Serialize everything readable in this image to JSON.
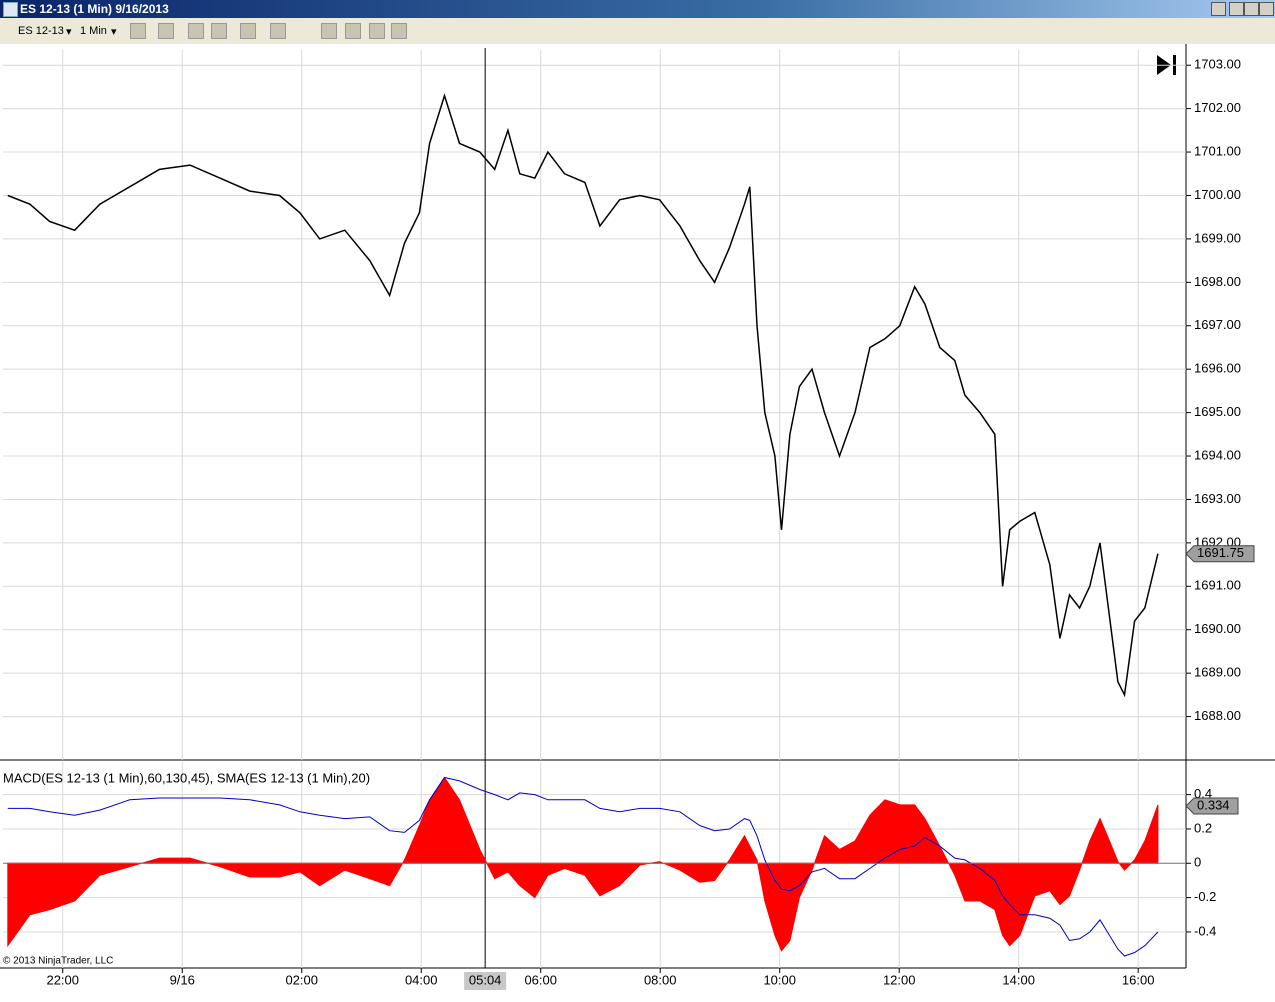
{
  "window": {
    "title": "ES 12-13 (1 Min)  9/16/2013"
  },
  "toolbar": {
    "instrument": "ES 12-13",
    "interval": "1 Min"
  },
  "copyright": "© 2013 NinjaTrader, LLC",
  "chart_data": [
    {
      "type": "line",
      "color": "#000000",
      "grid": true,
      "xlim": [
        21,
        40.8
      ],
      "ylim": [
        1687,
        1703.35
      ],
      "yticks": [
        {
          "value": 1688,
          "label": "1688.00"
        },
        {
          "value": 1689,
          "label": "1689.00"
        },
        {
          "value": 1690,
          "label": "1690.00"
        },
        {
          "value": 1691,
          "label": "1691.00"
        },
        {
          "value": 1692,
          "label": "1692.00"
        },
        {
          "value": 1693,
          "label": "1693.00"
        },
        {
          "value": 1694,
          "label": "1694.00"
        },
        {
          "value": 1695,
          "label": "1695.00"
        },
        {
          "value": 1696,
          "label": "1696.00"
        },
        {
          "value": 1697,
          "label": "1697.00"
        },
        {
          "value": 1698,
          "label": "1698.00"
        },
        {
          "value": 1699,
          "label": "1699.00"
        },
        {
          "value": 1700,
          "label": "1700.00"
        },
        {
          "value": 1701,
          "label": "1701.00"
        },
        {
          "value": 1702,
          "label": "1702.00"
        },
        {
          "value": 1703,
          "label": "1703.00"
        }
      ],
      "x": [
        21.08,
        21.45,
        21.78,
        22.2,
        22.62,
        23.12,
        23.62,
        24.13,
        24.63,
        25.13,
        25.63,
        25.97,
        26.3,
        26.72,
        27.14,
        27.47,
        27.72,
        27.97,
        28.14,
        28.39,
        28.64,
        28.98,
        29.23,
        29.45,
        29.65,
        29.9,
        30.12,
        30.4,
        30.74,
        30.99,
        31.32,
        31.66,
        31.99,
        32.33,
        32.66,
        32.91,
        33.16,
        33.41,
        33.5,
        33.62,
        33.75,
        33.92,
        34.03,
        34.17,
        34.33,
        34.54,
        34.75,
        35.0,
        35.26,
        35.51,
        35.76,
        36.01,
        36.26,
        36.43,
        36.68,
        36.93,
        37.1,
        37.35,
        37.6,
        37.73,
        37.85,
        38.02,
        38.27,
        38.52,
        38.69,
        38.85,
        39.02,
        39.19,
        39.36,
        39.52,
        39.66,
        39.77,
        39.94,
        40.11,
        40.33
      ],
      "values": [
        1700.0,
        1699.8,
        1699.4,
        1699.2,
        1699.8,
        1700.2,
        1700.6,
        1700.7,
        1700.4,
        1700.1,
        1700.0,
        1699.6,
        1699.0,
        1699.2,
        1698.5,
        1697.7,
        1698.9,
        1699.6,
        1701.2,
        1702.3,
        1701.2,
        1701.0,
        1700.6,
        1701.5,
        1700.5,
        1700.4,
        1701.0,
        1700.5,
        1700.3,
        1699.3,
        1699.9,
        1700.0,
        1699.9,
        1699.3,
        1698.5,
        1698.0,
        1698.8,
        1699.8,
        1700.2,
        1697.0,
        1695.0,
        1694.0,
        1692.3,
        1694.5,
        1695.6,
        1696.0,
        1695.0,
        1694.0,
        1695.0,
        1696.5,
        1696.7,
        1697.0,
        1697.9,
        1697.5,
        1696.5,
        1696.2,
        1695.4,
        1695.0,
        1694.5,
        1691.0,
        1692.3,
        1692.5,
        1692.7,
        1691.5,
        1689.8,
        1690.8,
        1690.5,
        1691.0,
        1692.0,
        1690.3,
        1688.8,
        1688.5,
        1690.2,
        1690.5,
        1691.75
      ],
      "last_value": {
        "value": 1691.75,
        "label": "1691.75"
      },
      "crosshair": {
        "value": 29.07,
        "label": "05:04"
      }
    },
    {
      "type": "macd",
      "title": "MACD(ES 12-13 (1 Min),60,130,45), SMA(ES 12-13 (1 Min),20)",
      "grid": true,
      "xlim": [
        21,
        40.8
      ],
      "ylim": [
        -0.61,
        0.59
      ],
      "yticks": [
        -0.4,
        -0.2,
        0,
        0.2,
        0.4
      ],
      "xticks": [
        {
          "value": 22,
          "label": "22:00"
        },
        {
          "value": 24,
          "label": "9/16"
        },
        {
          "value": 26,
          "label": "02:00"
        },
        {
          "value": 28,
          "label": "04:00"
        },
        {
          "value": 30,
          "label": "06:00"
        },
        {
          "value": 32,
          "label": "08:00"
        },
        {
          "value": 34,
          "label": "10:00"
        },
        {
          "value": 36,
          "label": "12:00"
        },
        {
          "value": 38,
          "label": "14:00"
        },
        {
          "value": 40,
          "label": "16:00"
        }
      ],
      "x": [
        21.08,
        21.45,
        21.78,
        22.2,
        22.62,
        23.12,
        23.62,
        24.13,
        24.63,
        25.13,
        25.63,
        25.97,
        26.3,
        26.72,
        27.14,
        27.47,
        27.72,
        27.97,
        28.14,
        28.39,
        28.64,
        28.98,
        29.23,
        29.45,
        29.65,
        29.9,
        30.12,
        30.4,
        30.74,
        30.99,
        31.32,
        31.66,
        31.99,
        32.33,
        32.66,
        32.91,
        33.16,
        33.41,
        33.5,
        33.62,
        33.75,
        33.92,
        34.03,
        34.17,
        34.33,
        34.54,
        34.75,
        35.0,
        35.26,
        35.51,
        35.76,
        36.01,
        36.26,
        36.43,
        36.68,
        36.93,
        37.1,
        37.35,
        37.6,
        37.73,
        37.85,
        38.02,
        38.27,
        38.52,
        38.69,
        38.85,
        39.02,
        39.19,
        39.36,
        39.52,
        39.66,
        39.77,
        39.94,
        40.11,
        40.33
      ],
      "series": [
        {
          "type": "area",
          "color": "#ff0000",
          "values": [
            -0.48,
            -0.3,
            -0.27,
            -0.22,
            -0.07,
            -0.02,
            0.03,
            0.03,
            -0.02,
            -0.08,
            -0.08,
            -0.05,
            -0.13,
            -0.04,
            -0.09,
            -0.13,
            0.02,
            0.22,
            0.37,
            0.5,
            0.37,
            0.08,
            -0.09,
            -0.05,
            -0.13,
            -0.2,
            -0.07,
            -0.03,
            -0.07,
            -0.19,
            -0.13,
            -0.01,
            0.01,
            -0.04,
            -0.11,
            -0.1,
            0.02,
            0.16,
            0.1,
            0.02,
            -0.22,
            -0.42,
            -0.51,
            -0.45,
            -0.2,
            -0.04,
            0.16,
            0.08,
            0.13,
            0.28,
            0.37,
            0.34,
            0.34,
            0.26,
            0.1,
            -0.07,
            -0.22,
            -0.22,
            -0.27,
            -0.42,
            -0.48,
            -0.42,
            -0.19,
            -0.16,
            -0.24,
            -0.19,
            -0.04,
            0.13,
            0.26,
            0.13,
            0.01,
            -0.04,
            0.02,
            0.13,
            0.34
          ]
        },
        {
          "type": "line",
          "color": "#0000cc",
          "values": [
            0.32,
            0.32,
            0.3,
            0.28,
            0.31,
            0.37,
            0.38,
            0.38,
            0.38,
            0.37,
            0.34,
            0.3,
            0.28,
            0.26,
            0.27,
            0.19,
            0.18,
            0.25,
            0.37,
            0.5,
            0.48,
            0.43,
            0.4,
            0.37,
            0.41,
            0.4,
            0.37,
            0.37,
            0.37,
            0.32,
            0.3,
            0.32,
            0.32,
            0.3,
            0.22,
            0.19,
            0.2,
            0.26,
            0.25,
            0.16,
            0.02,
            -0.1,
            -0.15,
            -0.16,
            -0.13,
            -0.05,
            -0.03,
            -0.09,
            -0.09,
            -0.03,
            0.03,
            0.08,
            0.1,
            0.15,
            0.1,
            0.03,
            0.02,
            -0.03,
            -0.1,
            -0.19,
            -0.24,
            -0.3,
            -0.3,
            -0.32,
            -0.36,
            -0.45,
            -0.44,
            -0.4,
            -0.33,
            -0.42,
            -0.5,
            -0.54,
            -0.52,
            -0.48,
            -0.4
          ]
        }
      ],
      "last_value": 0.334
    }
  ]
}
